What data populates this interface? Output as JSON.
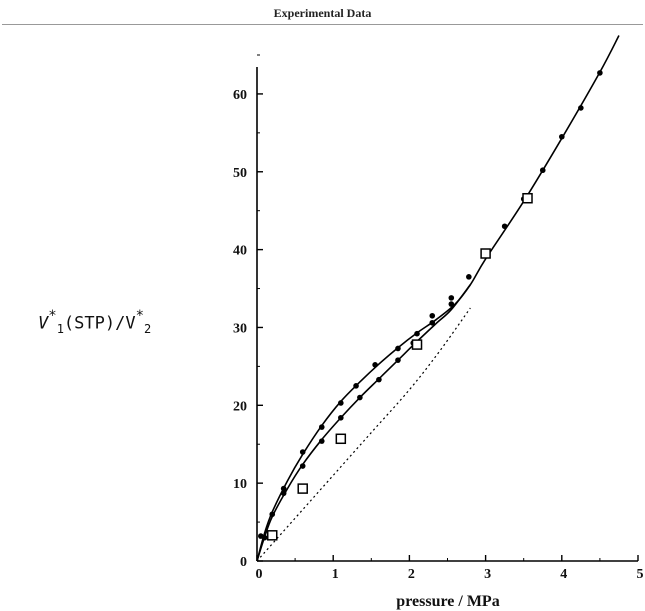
{
  "header": {
    "title": "Experimental Data"
  },
  "chart_data": {
    "type": "scatter",
    "title": "",
    "xlabel": "pressure / MPa",
    "ylabel": {
      "v1": "V",
      "v1_sup": "*",
      "v1_sub": "1",
      "mid": "(STP)/V",
      "v2_sup": "*",
      "v2_sub": "2"
    },
    "xlim": [
      0,
      5
    ],
    "ylim": [
      0,
      65
    ],
    "xticks": [
      0,
      1,
      2,
      3,
      4,
      5
    ],
    "yticks": [
      0,
      10,
      20,
      30,
      40,
      50,
      60
    ],
    "grid": false,
    "series": [
      {
        "marker": "filled-circle",
        "points": [
          [
            0.05,
            3.2
          ],
          [
            0.2,
            6.0
          ],
          [
            0.35,
            9.3
          ],
          [
            0.6,
            14.0
          ],
          [
            0.85,
            17.2
          ],
          [
            1.1,
            20.3
          ],
          [
            1.3,
            22.5
          ],
          [
            1.55,
            25.2
          ],
          [
            1.85,
            27.3
          ],
          [
            2.1,
            29.2
          ],
          [
            2.3,
            31.5
          ],
          [
            2.55,
            33.8
          ],
          [
            2.78,
            36.5
          ],
          [
            3.0,
            39.5
          ],
          [
            3.25,
            43.0
          ],
          [
            3.5,
            46.5
          ],
          [
            3.75,
            50.2
          ],
          [
            4.0,
            54.5
          ],
          [
            4.25,
            58.2
          ],
          [
            4.5,
            62.7
          ]
        ]
      },
      {
        "marker": "filled-circle",
        "points": [
          [
            0.1,
            3.0
          ],
          [
            0.35,
            8.7
          ],
          [
            0.6,
            12.2
          ],
          [
            0.85,
            15.4
          ],
          [
            1.1,
            18.4
          ],
          [
            1.35,
            21.0
          ],
          [
            1.6,
            23.3
          ],
          [
            1.85,
            25.8
          ],
          [
            2.05,
            28.0
          ],
          [
            2.3,
            30.6
          ],
          [
            2.55,
            33.0
          ]
        ]
      },
      {
        "marker": "open-square",
        "points": [
          [
            0.2,
            3.3
          ],
          [
            0.6,
            9.3
          ],
          [
            1.1,
            15.7
          ],
          [
            2.1,
            27.8
          ],
          [
            3.0,
            39.5
          ],
          [
            3.55,
            46.6
          ]
        ]
      }
    ],
    "curves": [
      {
        "style": "solid",
        "points": [
          [
            0,
            0
          ],
          [
            0.1,
            3.6
          ],
          [
            0.2,
            6.3
          ],
          [
            0.4,
            10.3
          ],
          [
            0.6,
            13.7
          ],
          [
            0.85,
            17.4
          ],
          [
            1.1,
            20.5
          ],
          [
            1.35,
            23.0
          ],
          [
            1.6,
            25.3
          ],
          [
            1.85,
            27.4
          ],
          [
            2.1,
            29.3
          ],
          [
            2.35,
            31.0
          ],
          [
            2.6,
            33.0
          ],
          [
            2.8,
            35.5
          ],
          [
            3.0,
            38.8
          ],
          [
            3.5,
            46.2
          ],
          [
            4.0,
            54.3
          ],
          [
            4.5,
            62.8
          ],
          [
            4.75,
            67.5
          ]
        ]
      },
      {
        "style": "solid",
        "points": [
          [
            0,
            0
          ],
          [
            0.1,
            3.1
          ],
          [
            0.2,
            5.7
          ],
          [
            0.4,
            9.3
          ],
          [
            0.6,
            12.4
          ],
          [
            0.85,
            15.6
          ],
          [
            1.1,
            18.4
          ],
          [
            1.35,
            21.0
          ],
          [
            1.6,
            23.4
          ],
          [
            1.85,
            25.8
          ],
          [
            2.1,
            28.2
          ],
          [
            2.35,
            30.5
          ],
          [
            2.55,
            32.3
          ],
          [
            2.8,
            35.5
          ]
        ]
      },
      {
        "style": "dotted",
        "points": [
          [
            0,
            0
          ],
          [
            0.5,
            5.5
          ],
          [
            1.0,
            11.0
          ],
          [
            1.5,
            16.5
          ],
          [
            2.0,
            22.0
          ],
          [
            2.4,
            27.0
          ],
          [
            2.8,
            32.5
          ]
        ]
      }
    ]
  }
}
